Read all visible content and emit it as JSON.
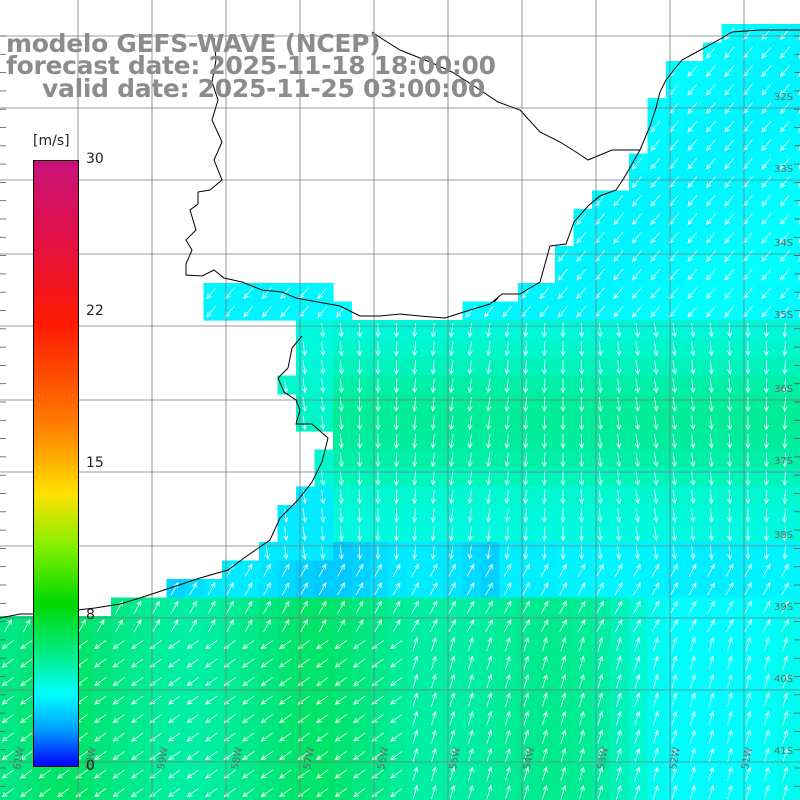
{
  "title": {
    "line1": "modelo GEFS-WAVE (NCEP)",
    "line2": "forecast date: 2025-11-18 18:00:00",
    "line3": "valid date: 2025-11-25 03:00:00"
  },
  "colorbar": {
    "unit": "[m/s]",
    "min": 0,
    "max": 30,
    "ticks": [
      "30",
      "22",
      "15",
      "8",
      "0"
    ],
    "tick_values": [
      30,
      22,
      15,
      8,
      0
    ]
  },
  "axes": {
    "lat_labels": [
      "32S",
      "33S",
      "34S",
      "35S",
      "36S",
      "37S",
      "38S",
      "39S",
      "40S",
      "41S"
    ],
    "lon_labels": [
      "61W",
      "60W",
      "59W",
      "58W",
      "57W",
      "56W",
      "55W",
      "54W",
      "53W",
      "52W",
      "51W"
    ]
  },
  "colors": {
    "land": "#ffffff",
    "grid": "#7a7a7a",
    "coast": "#000000",
    "arrow": "#ffffff",
    "title": "#8c8c8c"
  }
}
